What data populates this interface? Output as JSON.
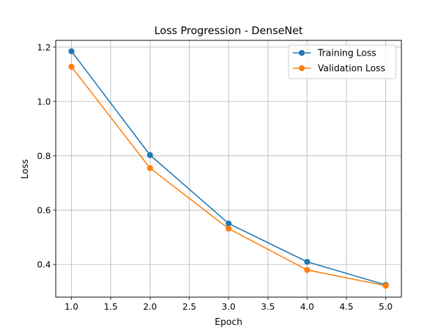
{
  "chart_data": {
    "type": "line",
    "title": "Loss Progression - DenseNet",
    "xlabel": "Epoch",
    "ylabel": "Loss",
    "xlim": [
      0.8,
      5.2
    ],
    "ylim": [
      0.28,
      1.225
    ],
    "xticks": [
      1.0,
      1.5,
      2.0,
      2.5,
      3.0,
      3.5,
      4.0,
      4.5,
      5.0
    ],
    "xtick_labels": [
      "1.0",
      "1.5",
      "2.0",
      "2.5",
      "3.0",
      "3.5",
      "4.0",
      "4.5",
      "5.0"
    ],
    "yticks": [
      0.4,
      0.6,
      0.8,
      1.0,
      1.2
    ],
    "ytick_labels": [
      "0.4",
      "0.6",
      "0.8",
      "1.0",
      "1.2"
    ],
    "grid": true,
    "legend_position": "top-right",
    "x": [
      1,
      2,
      3,
      4,
      5
    ],
    "series": [
      {
        "name": "Training Loss",
        "color": "#1f77b4",
        "values": [
          1.185,
          0.803,
          0.551,
          0.41,
          0.325
        ]
      },
      {
        "name": "Validation Loss",
        "color": "#ff7f0e",
        "values": [
          1.128,
          0.755,
          0.532,
          0.38,
          0.322
        ]
      }
    ]
  }
}
